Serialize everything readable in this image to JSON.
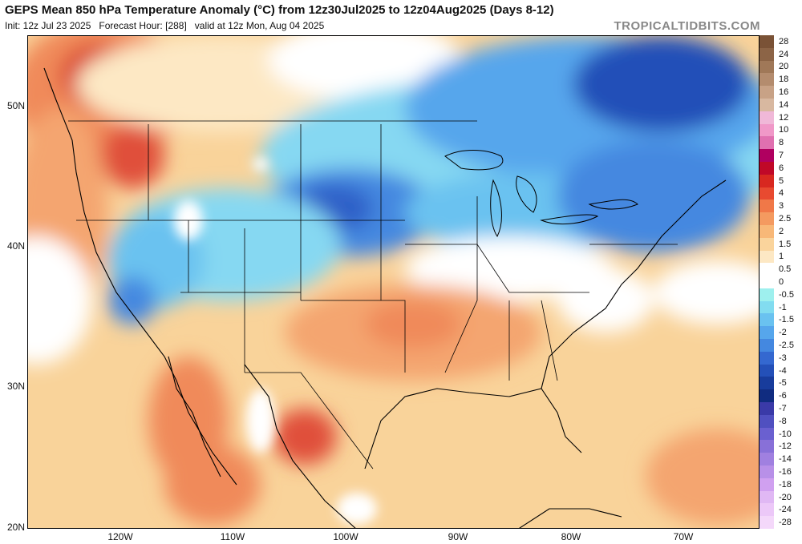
{
  "header": {
    "title": "GEPS Mean 850 hPa Temperature Anomaly (°C) from 12z30Jul2025 to 12z04Aug2025 (Days 8-12)",
    "subtitle": "Init: 12z Jul 23 2025   Forecast Hour: [288]   valid at 12z Mon, Aug 04 2025",
    "brand": "TROPICALTIDBITS.COM"
  },
  "axes": {
    "latitude_labels": [
      "50N",
      "40N",
      "30N",
      "20N"
    ],
    "longitude_labels": [
      "120W",
      "110W",
      "100W",
      "90W",
      "80W",
      "70W"
    ]
  },
  "colorbar": {
    "labels": [
      "28",
      "24",
      "20",
      "18",
      "16",
      "14",
      "12",
      "10",
      "8",
      "7",
      "6",
      "5",
      "4",
      "3",
      "2.5",
      "2",
      "1.5",
      "1",
      "0.5",
      "0",
      "-0.5",
      "-1",
      "-1.5",
      "-2",
      "-2.5",
      "-3",
      "-4",
      "-5",
      "-6",
      "-7",
      "-8",
      "-10",
      "-12",
      "-14",
      "-16",
      "-18",
      "-20",
      "-24",
      "-28"
    ],
    "colors": [
      "#7a5236",
      "#8c6446",
      "#a07858",
      "#b48c6e",
      "#c8a286",
      "#d8b8a0",
      "#f0b8d8",
      "#f098c8",
      "#e070b0",
      "#b00060",
      "#c00828",
      "#d82820",
      "#e84a30",
      "#f07848",
      "#f49a60",
      "#f8b878",
      "#fad49c",
      "#fde8c4",
      "#ffffff",
      "#ffffff",
      "#9ef0ee",
      "#82dcf0",
      "#6ac2f0",
      "#56a6ec",
      "#4488e0",
      "#3468d0",
      "#2450b8",
      "#183c9c",
      "#102c80",
      "#3a3aa8",
      "#5050c0",
      "#6a60d0",
      "#8870d8",
      "#a080e0",
      "#b890e8",
      "#d0a0f0",
      "#e0b8f4",
      "#ecc8f8",
      "#f4d8fa"
    ]
  }
}
